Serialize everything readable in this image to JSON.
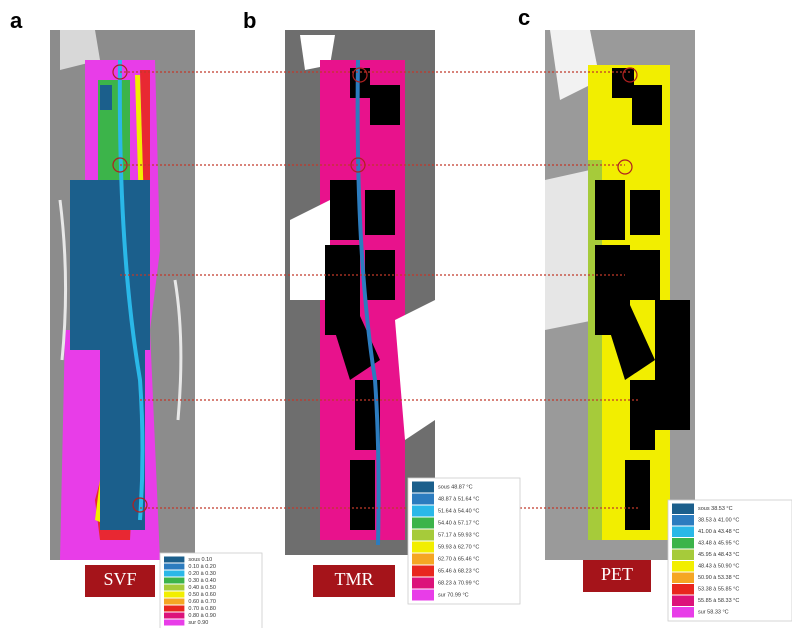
{
  "legend_colors": [
    "#1b5f8c",
    "#2c7cbf",
    "#2ab8e8",
    "#3cb44a",
    "#a6cb3a",
    "#f2ee00",
    "#f5a623",
    "#e8261e",
    "#dc127a",
    "#e83de8"
  ],
  "panels": [
    {
      "letter": "a",
      "label": "SVF",
      "legend": [
        "sous 0.10",
        "0.10 à 0.20",
        "0.20 à 0.30",
        "0.30 à 0.40",
        "0.40 à 0.50",
        "0.50 à 0.60",
        "0.60 à 0.70",
        "0.70 à 0.80",
        "0.80 à 0.90",
        "sur 0.90"
      ]
    },
    {
      "letter": "b",
      "label": "TMR",
      "legend": [
        "sous 48.87 °C",
        "48.87 à 51.64 °C",
        "51.64 à 54.40 °C",
        "54.40 à 57.17 °C",
        "57.17 à 59.93 °C",
        "59.93 à 62.70 °C",
        "62.70 à 65.46 °C",
        "65.46 à 68.23 °C",
        "68.23 à 70.99 °C",
        "sur 70.99 °C"
      ]
    },
    {
      "letter": "c",
      "label": "PET",
      "legend": [
        "sous 38.53 °C",
        "38.53 à 41.00 °C",
        "41.00 à 43.48 °C",
        "43.48 à 45.95 °C",
        "45.95 à 48.43 °C",
        "48.43 à 50.90 °C",
        "50.90 à 53.38 °C",
        "53.38 à 55.85 °C",
        "55.85 à 58.33 °C",
        "sur 58.33 °C"
      ]
    }
  ]
}
